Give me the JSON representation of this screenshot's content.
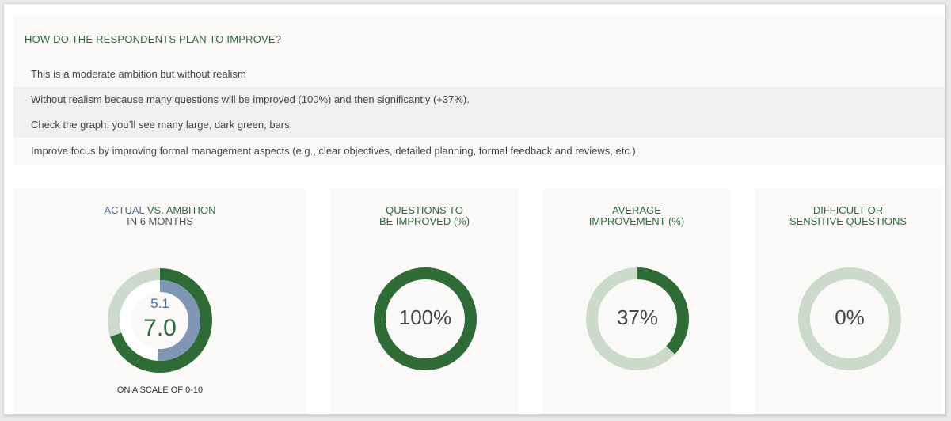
{
  "header": {
    "title": "HOW DO THE RESPONDENTS PLAN TO IMPROVE?"
  },
  "insights": [
    "This is a moderate ambition but without realism",
    "Without realism because many questions will be improved (100%) and then significantly (+37%).",
    "Check the graph: you’ll see many large, dark green, bars.",
    "Improve focus by improving formal management aspects (e.g., clear objectives, detailed planning, formal feedback and reviews, etc.)"
  ],
  "colors": {
    "dark_green": "#2f6b37",
    "light_green": "#cbdacb",
    "blue_gray": "#7f97b4",
    "blue_text": "#4a6b96",
    "green_text": "#2d6a3c"
  },
  "cards": {
    "actual": {
      "title_actual": "ACTUAL",
      "title_vs": " VS. AMBITION",
      "title_line2": "IN 6 MONTHS",
      "actual_value": "5.1",
      "ambition_value": "7.0",
      "scale_note": "ON A SCALE OF 0-10"
    },
    "questions": {
      "title_line1": "QUESTIONS TO",
      "title_line2": "BE IMPROVED (%)",
      "value_label": "100%"
    },
    "average": {
      "title_line1": "AVERAGE",
      "title_line2": "IMPROVEMENT (%)",
      "value_label": "37%"
    },
    "difficult": {
      "title_line1": "DIFFICULT OR",
      "title_line2": "SENSITIVE QUESTIONS",
      "value_label": "0%"
    }
  },
  "chart_data": [
    {
      "type": "donut",
      "scale": [
        0,
        10
      ],
      "series": [
        {
          "values": [
            7.0
          ]
        },
        {
          "values": [
            5.1
          ]
        }
      ]
    },
    {
      "type": "pie",
      "values": [
        100
      ]
    },
    {
      "type": "pie",
      "values": [
        37
      ]
    },
    {
      "type": "pie",
      "values": [
        0
      ]
    }
  ]
}
